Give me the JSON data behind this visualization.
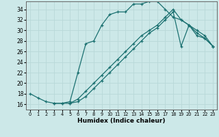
{
  "xlabel": "Humidex (Indice chaleur)",
  "bg_color": "#cce8e8",
  "grid_color": "#b8d8d8",
  "line_color": "#1a7070",
  "xlim": [
    -0.5,
    23.5
  ],
  "ylim": [
    15.0,
    35.5
  ],
  "yticks": [
    16,
    18,
    20,
    22,
    24,
    26,
    28,
    30,
    32,
    34
  ],
  "xticks": [
    0,
    1,
    2,
    3,
    4,
    5,
    6,
    7,
    8,
    9,
    10,
    11,
    12,
    13,
    14,
    15,
    16,
    17,
    18,
    19,
    20,
    21,
    22,
    23
  ],
  "line1_x": [
    0,
    1,
    2,
    3,
    4,
    5,
    6,
    7,
    8,
    9,
    10,
    11,
    12,
    13,
    14,
    15,
    16,
    17,
    18,
    19,
    20,
    21,
    22,
    23
  ],
  "line1_y": [
    18.0,
    17.2,
    16.5,
    16.2,
    16.2,
    16.5,
    22.0,
    27.5,
    28.0,
    31.0,
    33.0,
    33.5,
    33.5,
    35.0,
    35.0,
    35.5,
    35.5,
    34.0,
    32.5,
    32.0,
    31.0,
    29.0,
    28.5,
    27.0
  ],
  "line2_x": [
    3,
    4,
    5,
    6,
    7,
    8,
    9,
    10,
    11,
    12,
    13,
    14,
    15,
    16,
    17,
    18,
    19,
    20,
    21,
    22,
    23
  ],
  "line2_y": [
    16.2,
    16.2,
    16.2,
    17.0,
    18.5,
    20.0,
    21.5,
    23.0,
    24.5,
    26.0,
    27.5,
    29.0,
    30.0,
    31.0,
    32.5,
    34.0,
    32.0,
    31.0,
    29.5,
    28.5,
    27.0
  ],
  "line3_x": [
    5,
    6,
    7,
    8,
    9,
    10,
    11,
    12,
    13,
    14,
    15,
    16,
    17,
    18,
    19,
    20,
    21,
    22,
    23
  ],
  "line3_y": [
    16.2,
    16.5,
    17.5,
    19.0,
    20.5,
    22.0,
    23.5,
    25.0,
    26.5,
    28.0,
    29.5,
    30.5,
    32.0,
    33.5,
    27.0,
    31.0,
    30.0,
    29.0,
    27.0
  ]
}
